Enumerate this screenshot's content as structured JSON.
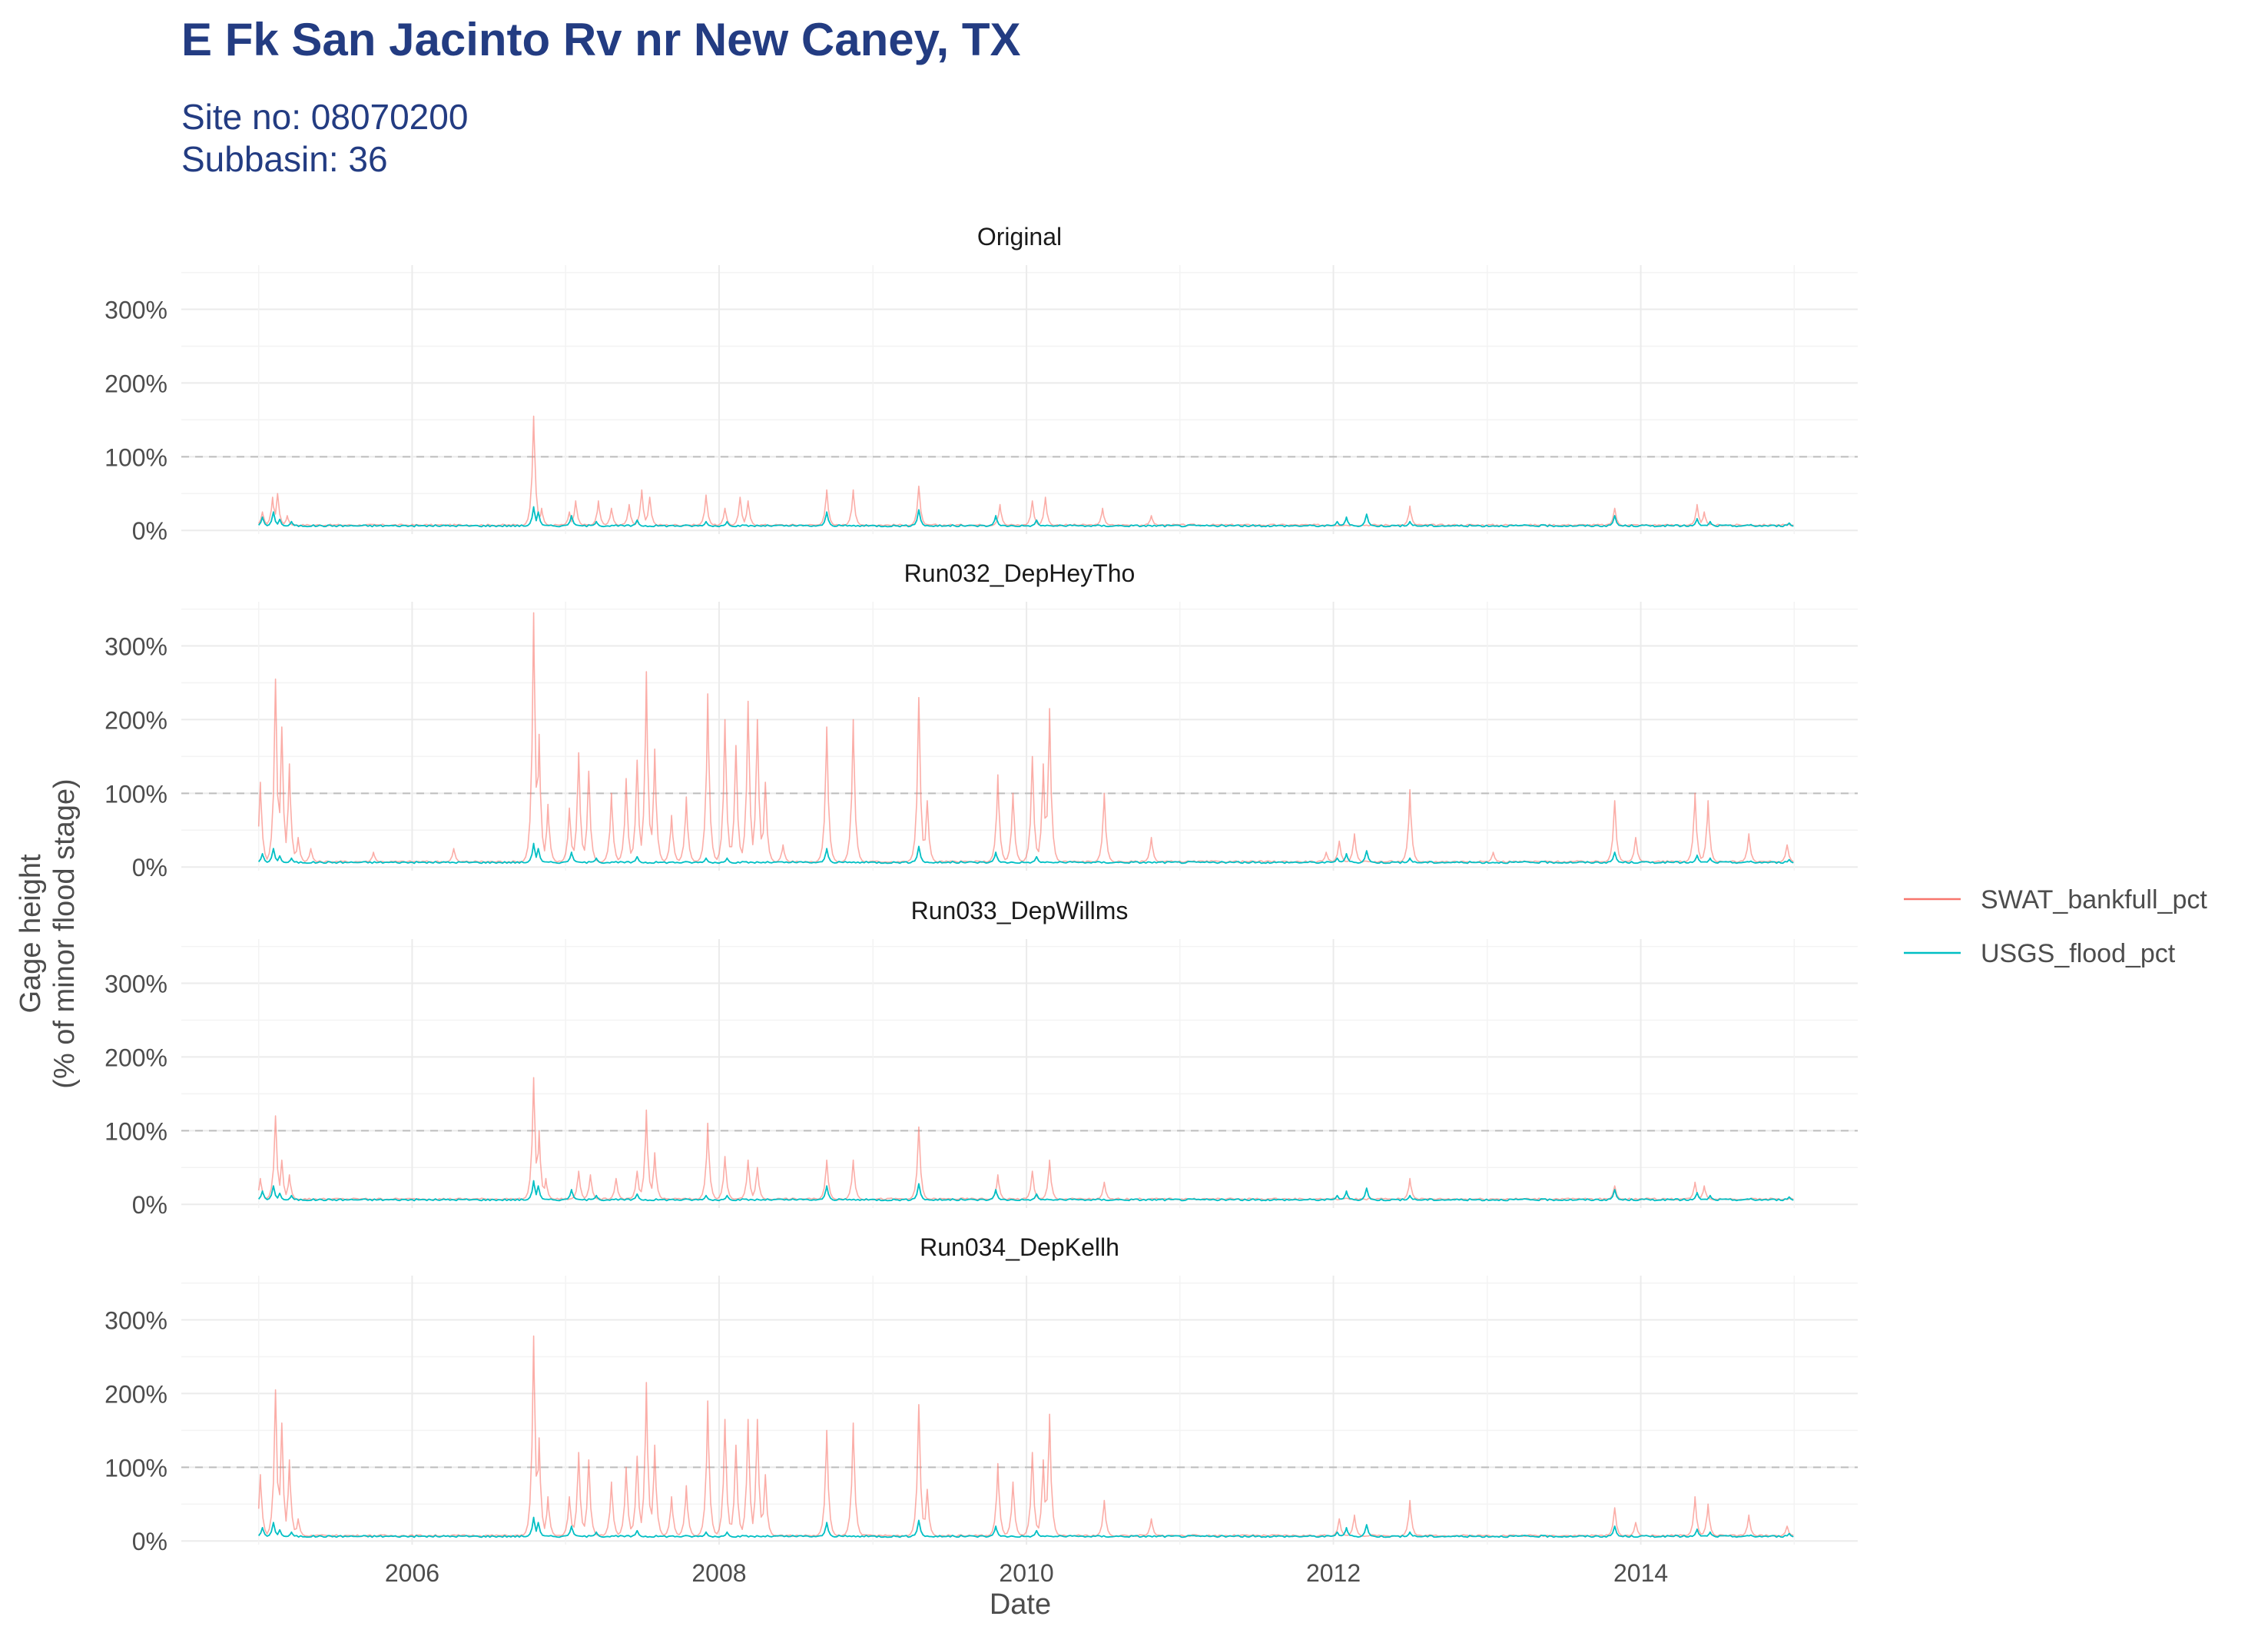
{
  "title": "E Fk San Jacinto Rv nr New Caney, TX",
  "subtitle_lines": [
    "Site no: 08070200",
    "Subbasin: 36"
  ],
  "chart_data": {
    "type": "line",
    "title": "E Fk San Jacinto Rv nr New Caney, TX",
    "xlabel": "Date",
    "ylabel_lines": [
      "Gage height",
      "(% of minor flood stage)"
    ],
    "x_range": [
      "2004-07-01",
      "2015-06-01"
    ],
    "x_ticks": [
      {
        "date": "2006-01-01",
        "label": "2006"
      },
      {
        "date": "2008-01-01",
        "label": "2008"
      },
      {
        "date": "2010-01-01",
        "label": "2010"
      },
      {
        "date": "2012-01-01",
        "label": "2012"
      },
      {
        "date": "2014-01-01",
        "label": "2014"
      }
    ],
    "ylim": [
      -5,
      360
    ],
    "y_ticks": [
      {
        "value": 0,
        "label": "0%"
      },
      {
        "value": 100,
        "label": "100%"
      },
      {
        "value": 200,
        "label": "200%"
      },
      {
        "value": 300,
        "label": "300%"
      }
    ],
    "reference_line": {
      "value": 100,
      "style": "dashed"
    },
    "grid": true,
    "legend_position": "right",
    "legend": [
      {
        "name": "SWAT_bankfull_pct",
        "color": "#f8766d"
      },
      {
        "name": "USGS_flood_pct",
        "color": "#00bfc4"
      }
    ],
    "baseline": {
      "SWAT_bankfull_pct": 6,
      "USGS_flood_pct": 5
    },
    "usgs_peaks": [
      [
        "2005-01-10",
        18
      ],
      [
        "2005-02-05",
        25
      ],
      [
        "2005-02-20",
        15
      ],
      [
        "2005-03-20",
        12
      ],
      [
        "2006-10-17",
        32
      ],
      [
        "2006-10-28",
        25
      ],
      [
        "2007-01-15",
        20
      ],
      [
        "2007-03-15",
        12
      ],
      [
        "2007-06-20",
        14
      ],
      [
        "2007-12-01",
        12
      ],
      [
        "2008-01-20",
        12
      ],
      [
        "2008-09-13",
        25
      ],
      [
        "2009-04-20",
        28
      ],
      [
        "2009-10-20",
        20
      ],
      [
        "2010-01-25",
        14
      ],
      [
        "2012-01-10",
        12
      ],
      [
        "2012-02-01",
        18
      ],
      [
        "2012-03-20",
        22
      ],
      [
        "2012-07-01",
        12
      ],
      [
        "2013-10-31",
        20
      ],
      [
        "2014-05-15",
        16
      ],
      [
        "2014-06-15",
        12
      ],
      [
        "2014-09-20",
        8
      ],
      [
        "2014-12-20",
        10
      ]
    ],
    "panels": [
      {
        "name": "Original",
        "swat_peaks": [
          [
            "2005-01-10",
            25
          ],
          [
            "2005-02-03",
            45
          ],
          [
            "2005-02-15",
            50
          ],
          [
            "2005-03-10",
            20
          ],
          [
            "2006-10-17",
            155
          ],
          [
            "2006-11-05",
            30
          ],
          [
            "2007-01-10",
            25
          ],
          [
            "2007-01-25",
            40
          ],
          [
            "2007-03-20",
            40
          ],
          [
            "2007-04-20",
            30
          ],
          [
            "2007-06-01",
            35
          ],
          [
            "2007-07-01",
            55
          ],
          [
            "2007-07-20",
            45
          ],
          [
            "2007-12-01",
            48
          ],
          [
            "2008-01-15",
            30
          ],
          [
            "2008-02-20",
            45
          ],
          [
            "2008-03-10",
            40
          ],
          [
            "2008-09-13",
            55
          ],
          [
            "2008-11-15",
            55
          ],
          [
            "2009-04-20",
            60
          ],
          [
            "2009-10-30",
            35
          ],
          [
            "2010-01-15",
            40
          ],
          [
            "2010-02-15",
            45
          ],
          [
            "2010-07-01",
            30
          ],
          [
            "2010-10-25",
            20
          ],
          [
            "2012-07-01",
            33
          ],
          [
            "2013-10-31",
            30
          ],
          [
            "2014-05-15",
            35
          ],
          [
            "2014-06-01",
            25
          ]
        ]
      },
      {
        "name": "Run032_DepHeyTho",
        "swat_peaks": [
          [
            "2005-01-05",
            115
          ],
          [
            "2005-02-10",
            255
          ],
          [
            "2005-02-25",
            190
          ],
          [
            "2005-03-15",
            140
          ],
          [
            "2005-04-05",
            40
          ],
          [
            "2005-05-05",
            25
          ],
          [
            "2005-10-01",
            20
          ],
          [
            "2006-04-10",
            25
          ],
          [
            "2006-10-17",
            345
          ],
          [
            "2006-10-30",
            180
          ],
          [
            "2006-11-20",
            85
          ],
          [
            "2007-01-10",
            80
          ],
          [
            "2007-02-01",
            155
          ],
          [
            "2007-02-25",
            130
          ],
          [
            "2007-04-20",
            100
          ],
          [
            "2007-05-25",
            120
          ],
          [
            "2007-06-20",
            145
          ],
          [
            "2007-07-12",
            265
          ],
          [
            "2007-08-01",
            160
          ],
          [
            "2007-09-10",
            70
          ],
          [
            "2007-10-15",
            95
          ],
          [
            "2007-12-05",
            235
          ],
          [
            "2008-01-15",
            200
          ],
          [
            "2008-02-10",
            165
          ],
          [
            "2008-03-10",
            225
          ],
          [
            "2008-04-01",
            200
          ],
          [
            "2008-04-20",
            115
          ],
          [
            "2008-06-01",
            30
          ],
          [
            "2008-09-13",
            190
          ],
          [
            "2008-11-15",
            200
          ],
          [
            "2009-04-20",
            230
          ],
          [
            "2009-05-10",
            90
          ],
          [
            "2009-10-25",
            125
          ],
          [
            "2009-11-30",
            100
          ],
          [
            "2010-01-15",
            150
          ],
          [
            "2010-02-10",
            140
          ],
          [
            "2010-02-25",
            215
          ],
          [
            "2010-07-05",
            100
          ],
          [
            "2010-10-25",
            40
          ],
          [
            "2011-12-15",
            20
          ],
          [
            "2012-01-15",
            35
          ],
          [
            "2012-02-20",
            45
          ],
          [
            "2012-07-01",
            105
          ],
          [
            "2013-01-15",
            20
          ],
          [
            "2013-10-31",
            90
          ],
          [
            "2013-12-20",
            40
          ],
          [
            "2014-05-10",
            100
          ],
          [
            "2014-06-10",
            90
          ],
          [
            "2014-09-15",
            45
          ],
          [
            "2014-12-15",
            30
          ]
        ]
      },
      {
        "name": "Run033_DepWillms",
        "swat_peaks": [
          [
            "2005-01-05",
            35
          ],
          [
            "2005-02-10",
            120
          ],
          [
            "2005-02-25",
            60
          ],
          [
            "2005-03-15",
            40
          ],
          [
            "2006-10-17",
            172
          ],
          [
            "2006-10-30",
            100
          ],
          [
            "2006-11-15",
            35
          ],
          [
            "2007-02-01",
            45
          ],
          [
            "2007-03-01",
            40
          ],
          [
            "2007-05-01",
            35
          ],
          [
            "2007-06-20",
            45
          ],
          [
            "2007-07-12",
            128
          ],
          [
            "2007-08-01",
            70
          ],
          [
            "2007-12-05",
            110
          ],
          [
            "2008-01-15",
            65
          ],
          [
            "2008-03-10",
            60
          ],
          [
            "2008-04-01",
            50
          ],
          [
            "2008-09-13",
            60
          ],
          [
            "2008-11-15",
            60
          ],
          [
            "2009-04-20",
            105
          ],
          [
            "2009-10-25",
            40
          ],
          [
            "2010-01-15",
            45
          ],
          [
            "2010-02-25",
            60
          ],
          [
            "2010-07-05",
            30
          ],
          [
            "2012-07-01",
            35
          ],
          [
            "2013-10-31",
            25
          ],
          [
            "2014-05-10",
            30
          ],
          [
            "2014-06-01",
            25
          ]
        ]
      },
      {
        "name": "Run034_DepKellh",
        "swat_peaks": [
          [
            "2005-01-05",
            90
          ],
          [
            "2005-02-10",
            205
          ],
          [
            "2005-02-25",
            160
          ],
          [
            "2005-03-15",
            110
          ],
          [
            "2005-04-05",
            30
          ],
          [
            "2006-10-17",
            278
          ],
          [
            "2006-10-30",
            140
          ],
          [
            "2006-11-20",
            60
          ],
          [
            "2007-01-10",
            60
          ],
          [
            "2007-02-01",
            120
          ],
          [
            "2007-02-25",
            110
          ],
          [
            "2007-04-20",
            80
          ],
          [
            "2007-05-25",
            100
          ],
          [
            "2007-06-20",
            115
          ],
          [
            "2007-07-12",
            215
          ],
          [
            "2007-08-01",
            130
          ],
          [
            "2007-09-10",
            60
          ],
          [
            "2007-10-15",
            75
          ],
          [
            "2007-12-05",
            190
          ],
          [
            "2008-01-15",
            165
          ],
          [
            "2008-02-10",
            130
          ],
          [
            "2008-03-10",
            165
          ],
          [
            "2008-04-01",
            165
          ],
          [
            "2008-04-20",
            90
          ],
          [
            "2008-09-13",
            150
          ],
          [
            "2008-11-15",
            160
          ],
          [
            "2009-04-20",
            185
          ],
          [
            "2009-05-10",
            70
          ],
          [
            "2009-10-25",
            105
          ],
          [
            "2009-11-30",
            80
          ],
          [
            "2010-01-15",
            120
          ],
          [
            "2010-02-10",
            110
          ],
          [
            "2010-02-25",
            172
          ],
          [
            "2010-07-05",
            55
          ],
          [
            "2010-10-25",
            30
          ],
          [
            "2012-01-15",
            30
          ],
          [
            "2012-02-20",
            35
          ],
          [
            "2012-07-01",
            55
          ],
          [
            "2013-10-31",
            45
          ],
          [
            "2013-12-20",
            25
          ],
          [
            "2014-05-10",
            60
          ],
          [
            "2014-06-10",
            50
          ],
          [
            "2014-09-15",
            35
          ],
          [
            "2014-12-15",
            20
          ]
        ]
      }
    ]
  }
}
